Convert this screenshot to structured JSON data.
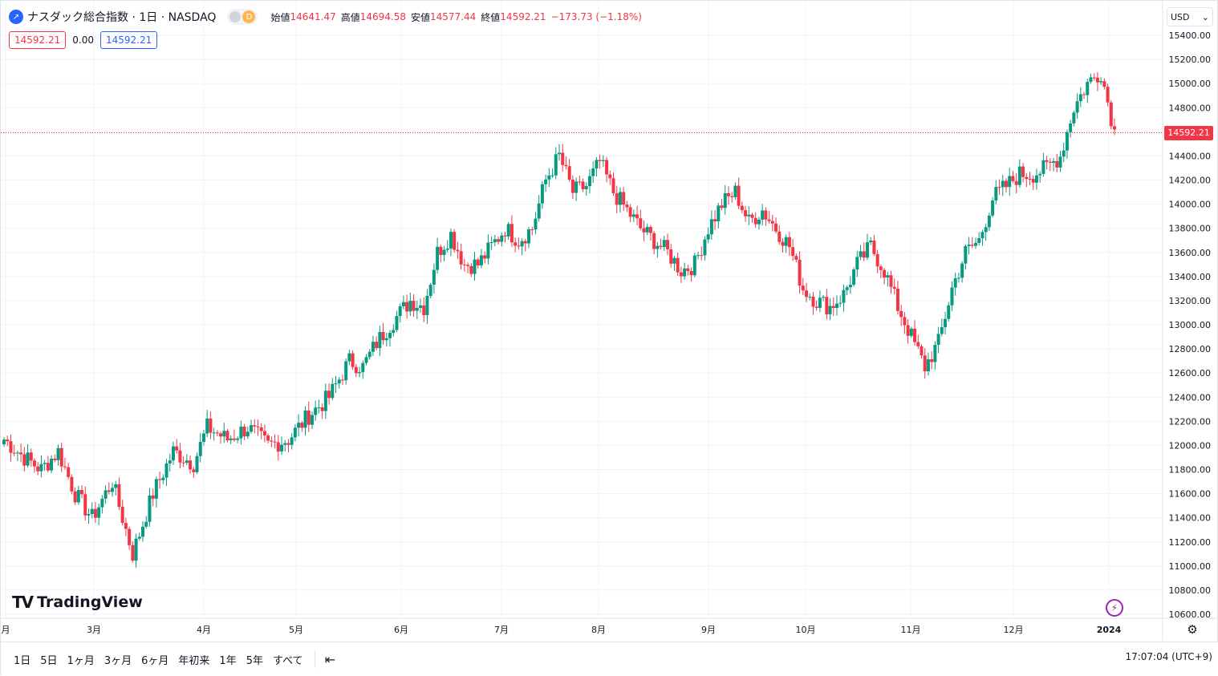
{
  "header": {
    "title": "ナスダック総合指数 · 1日 · NASDAQ",
    "status_letter": "D",
    "open_label": "始値",
    "open": "14641.47",
    "high_label": "高値",
    "high": "14694.58",
    "low_label": "安値",
    "low": "14577.44",
    "close_label": "終値",
    "close": "14592.21",
    "change": "−173.73 (−1.18%)"
  },
  "quote": {
    "bid": "14592.21",
    "spread": "0.00",
    "ask": "14592.21"
  },
  "currency": "USD",
  "last_price_label": "14592.21",
  "logo_text": "TradingView",
  "range_buttons": [
    "1日",
    "5日",
    "1ヶ月",
    "3ヶ月",
    "6ヶ月",
    "年初来",
    "1年",
    "5年",
    "すべて"
  ],
  "clock": "17:07:04 (UTC+9)",
  "colors": {
    "up": "#089981",
    "down": "#f23645",
    "accent": "#2962ff"
  },
  "chart_data": {
    "type": "candlestick",
    "ylim": [
      10500,
      15500
    ],
    "y_ticks": [
      15400,
      15200,
      15000,
      14800,
      14600,
      14400,
      14200,
      14000,
      13800,
      13600,
      13400,
      13200,
      13000,
      12800,
      12600,
      12400,
      12200,
      12000,
      11800,
      11600,
      11400,
      11200,
      11000,
      10800,
      10600
    ],
    "x_labels": [
      "月",
      "3月",
      "4月",
      "5月",
      "6月",
      "7月",
      "8月",
      "9月",
      "10月",
      "11月",
      "12月",
      "2024"
    ],
    "last_price": 14592.21,
    "grid": true,
    "anchors": [
      [
        0,
        12050
      ],
      [
        6,
        11900
      ],
      [
        11,
        11800
      ],
      [
        16,
        11950
      ],
      [
        21,
        11600
      ],
      [
        26,
        11400
      ],
      [
        32,
        11700
      ],
      [
        38,
        11100
      ],
      [
        44,
        11600
      ],
      [
        50,
        11950
      ],
      [
        56,
        11850
      ],
      [
        60,
        12150
      ],
      [
        66,
        12050
      ],
      [
        72,
        12150
      ],
      [
        78,
        12000
      ],
      [
        84,
        12050
      ],
      [
        90,
        12250
      ],
      [
        96,
        12400
      ],
      [
        102,
        12700
      ],
      [
        106,
        12650
      ],
      [
        110,
        12850
      ],
      [
        114,
        13000
      ],
      [
        120,
        13200
      ],
      [
        124,
        13150
      ],
      [
        128,
        13600
      ],
      [
        132,
        13750
      ],
      [
        136,
        13500
      ],
      [
        140,
        13500
      ],
      [
        144,
        13650
      ],
      [
        148,
        13800
      ],
      [
        152,
        13700
      ],
      [
        156,
        13800
      ],
      [
        160,
        14200
      ],
      [
        164,
        14400
      ],
      [
        168,
        14100
      ],
      [
        172,
        14150
      ],
      [
        176,
        14350
      ],
      [
        180,
        14100
      ],
      [
        184,
        13950
      ],
      [
        188,
        13800
      ],
      [
        192,
        13700
      ],
      [
        196,
        13600
      ],
      [
        200,
        13450
      ],
      [
        204,
        13500
      ],
      [
        208,
        13800
      ],
      [
        212,
        14000
      ],
      [
        216,
        14100
      ],
      [
        220,
        13850
      ],
      [
        224,
        13950
      ],
      [
        228,
        13800
      ],
      [
        232,
        13650
      ],
      [
        236,
        13300
      ],
      [
        240,
        13200
      ],
      [
        244,
        13150
      ],
      [
        248,
        13250
      ],
      [
        252,
        13500
      ],
      [
        256,
        13650
      ],
      [
        260,
        13450
      ],
      [
        264,
        13150
      ],
      [
        268,
        12900
      ],
      [
        272,
        12650
      ],
      [
        276,
        12850
      ],
      [
        280,
        13300
      ],
      [
        284,
        13600
      ],
      [
        288,
        13700
      ],
      [
        292,
        14050
      ],
      [
        296,
        14150
      ],
      [
        300,
        14250
      ],
      [
        304,
        14250
      ],
      [
        308,
        14300
      ],
      [
        312,
        14400
      ],
      [
        316,
        14800
      ],
      [
        320,
        15000
      ],
      [
        324,
        15100
      ],
      [
        328,
        14600
      ]
    ],
    "candle_count": 329
  }
}
